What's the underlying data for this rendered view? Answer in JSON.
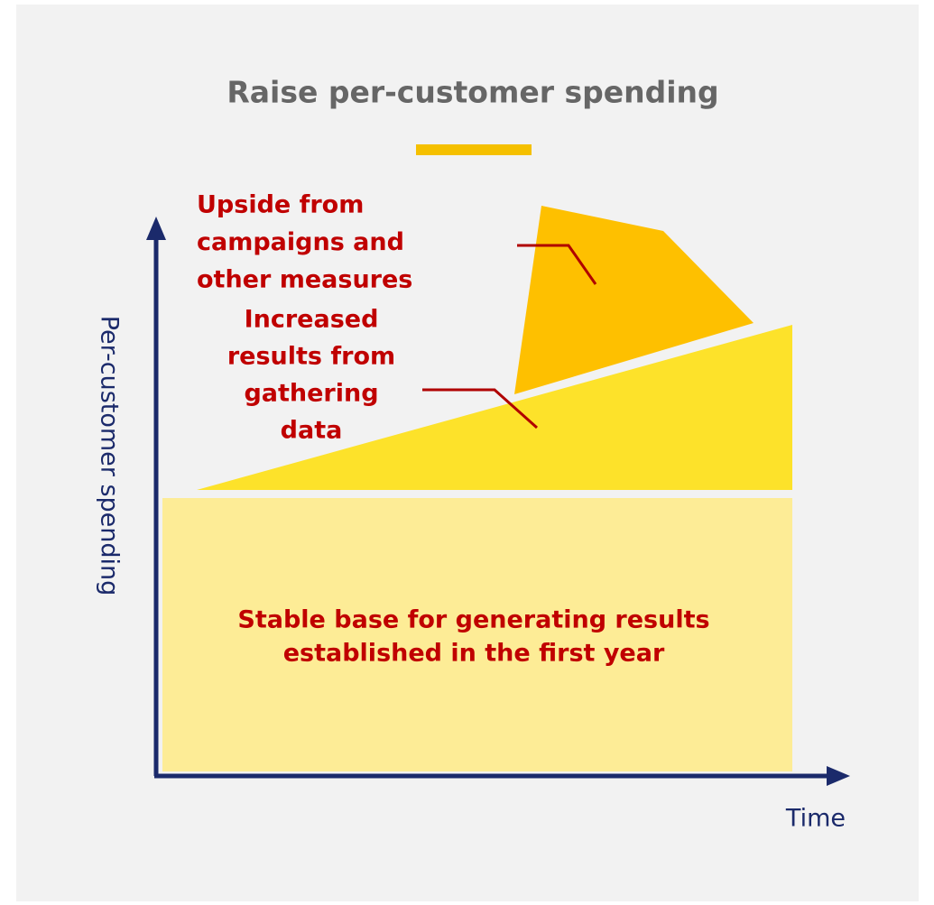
{
  "title": "Raise per-customer spending",
  "y_axis_label": "Per-customer spending",
  "x_axis_label": "Time",
  "regions": [
    {
      "lines": [
        "Upside from",
        "campaigns and",
        "other measures"
      ]
    },
    {
      "lines": [
        "Increased",
        "results from",
        "gathering",
        "data"
      ]
    },
    {
      "lines": [
        "Stable base for generating results",
        "established in the first year"
      ]
    }
  ]
}
